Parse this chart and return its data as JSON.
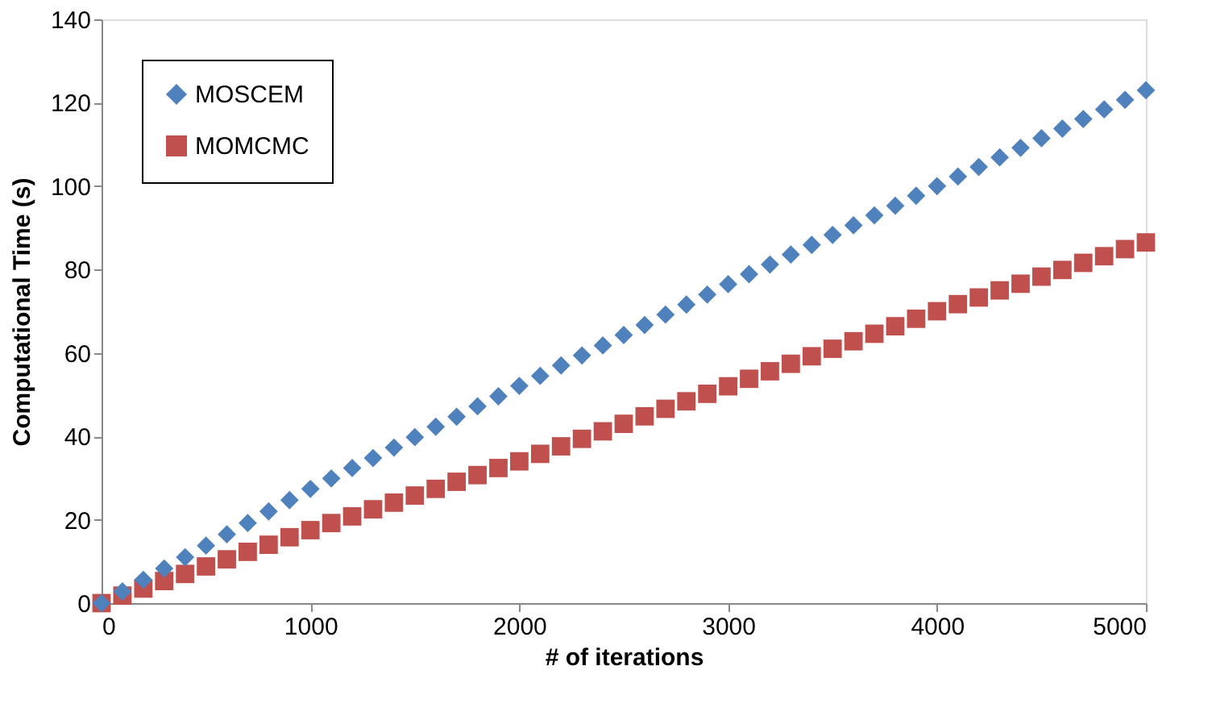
{
  "chart_data": {
    "type": "scatter",
    "xlabel": "# of iterations",
    "ylabel": "Computational Time (s)",
    "x": [
      0,
      100,
      200,
      300,
      400,
      500,
      600,
      700,
      800,
      900,
      1000,
      1100,
      1200,
      1300,
      1400,
      1500,
      1600,
      1700,
      1800,
      1900,
      2000,
      2100,
      2200,
      2300,
      2400,
      2500,
      2600,
      2700,
      2800,
      2900,
      3000,
      3100,
      3200,
      3300,
      3400,
      3500,
      3600,
      3700,
      3800,
      3900,
      4000,
      4100,
      4200,
      4300,
      4400,
      4500,
      4600,
      4700,
      4800,
      4900,
      5000
    ],
    "series": [
      {
        "name": "MOSCEM",
        "color": "#4f81bd",
        "marker": "diamond",
        "values": [
          0,
          2.8,
          5.6,
          8.3,
          11,
          13.8,
          16.5,
          19.2,
          22,
          24.7,
          27.4,
          29.9,
          32.4,
          34.8,
          37.3,
          39.8,
          42.3,
          44.7,
          47.2,
          49.6,
          52.1,
          54.5,
          57,
          59.4,
          61.8,
          64.3,
          66.7,
          69.2,
          71.6,
          74,
          76.5,
          78.9,
          81.2,
          83.6,
          85.9,
          88.3,
          90.6,
          93,
          95.3,
          97.7,
          100,
          102.3,
          104.6,
          106.9,
          109.2,
          111.5,
          113.8,
          116.1,
          118.4,
          120.7,
          123
        ]
      },
      {
        "name": "MOMCMC",
        "color": "#c0504d",
        "marker": "square",
        "values": [
          0,
          1.8,
          3.5,
          5.3,
          7,
          8.8,
          10.5,
          12.3,
          14,
          15.8,
          17.5,
          19.2,
          20.8,
          22.5,
          24.1,
          25.8,
          27.4,
          29.1,
          30.7,
          32.4,
          34,
          35.8,
          37.6,
          39.4,
          41.2,
          43,
          44.8,
          46.6,
          48.4,
          50.2,
          52,
          53.8,
          55.6,
          57.4,
          59.2,
          61,
          62.8,
          64.6,
          66.4,
          68.2,
          70,
          71.7,
          73.3,
          75,
          76.6,
          78.3,
          79.9,
          81.6,
          83.2,
          84.9,
          86.5
        ]
      }
    ],
    "xlim": [
      0,
      5000
    ],
    "xticks": [
      0,
      1000,
      2000,
      3000,
      4000,
      5000
    ],
    "ylim": [
      0,
      140
    ],
    "yticks": [
      0,
      20,
      40,
      60,
      80,
      100,
      120,
      140
    ],
    "grid": false,
    "legend": "top left"
  }
}
